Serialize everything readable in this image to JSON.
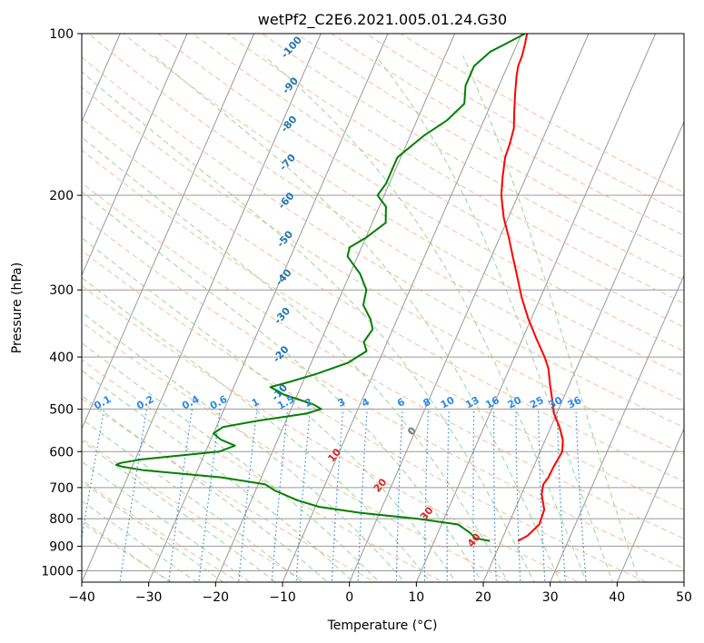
{
  "chart_data": {
    "type": "line",
    "subtype": "skew-t log-p diagram",
    "title": "wetPf2_C2E6.2021.005.01.24.G30",
    "xlabel": "Temperature (°C)",
    "ylabel": "Pressure (hPa)",
    "xlim": [
      -40,
      50
    ],
    "ylim": [
      1050,
      100
    ],
    "y_scale": "log",
    "grid": true,
    "x_ticks": [
      -40,
      -30,
      -20,
      -10,
      0,
      10,
      20,
      30,
      40,
      50
    ],
    "y_ticks": [
      100,
      200,
      300,
      400,
      500,
      600,
      700,
      800,
      900,
      1000
    ],
    "colors": {
      "temperature": "#ff0000",
      "dewpoint": "#008000",
      "isotherm": "#999999",
      "dry_adiabat": "#f4a582",
      "moist_adiabat": "#8fd18f",
      "mixing_ratio": "#2b8ae6",
      "dry_label": "#1f77b4",
      "moist_label": "#d62728",
      "zero_label": "#777777"
    },
    "series": [
      {
        "key": "temperature",
        "color": "#ff0000",
        "points": [
          [
            880,
            22.5
          ],
          [
            860,
            23.6
          ],
          [
            820,
            24.6
          ],
          [
            770,
            24.4
          ],
          [
            720,
            23.0
          ],
          [
            690,
            22.6
          ],
          [
            670,
            22.9
          ],
          [
            640,
            23.0
          ],
          [
            600,
            23.3
          ],
          [
            570,
            22.6
          ],
          [
            540,
            21.3
          ],
          [
            510,
            19.6
          ],
          [
            480,
            18.4
          ],
          [
            450,
            17.1
          ],
          [
            420,
            15.8
          ],
          [
            400,
            14.5
          ],
          [
            370,
            12.1
          ],
          [
            340,
            9.6
          ],
          [
            310,
            7.2
          ],
          [
            285,
            5.3
          ],
          [
            260,
            3.2
          ],
          [
            240,
            1.4
          ],
          [
            220,
            -0.7
          ],
          [
            200,
            -2.5
          ],
          [
            185,
            -3.5
          ],
          [
            170,
            -4.4
          ],
          [
            160,
            -4.6
          ],
          [
            150,
            -5.0
          ],
          [
            140,
            -6.0
          ],
          [
            130,
            -7.0
          ],
          [
            120,
            -8.0
          ],
          [
            115,
            -8.4
          ],
          [
            110,
            -8.5
          ],
          [
            105,
            -8.8
          ],
          [
            100,
            -9.2
          ]
        ]
      },
      {
        "key": "dewpoint",
        "color": "#008000",
        "points": [
          [
            880,
            18.3
          ],
          [
            870,
            16.0
          ],
          [
            850,
            14.8
          ],
          [
            820,
            12.5
          ],
          [
            800,
            6.0
          ],
          [
            780,
            -3.0
          ],
          [
            760,
            -9.5
          ],
          [
            740,
            -13.0
          ],
          [
            710,
            -17.0
          ],
          [
            690,
            -19.0
          ],
          [
            670,
            -26.0
          ],
          [
            650,
            -38.0
          ],
          [
            640,
            -41.5
          ],
          [
            635,
            -42.5
          ],
          [
            630,
            -42.0
          ],
          [
            620,
            -39.0
          ],
          [
            600,
            -28.0
          ],
          [
            585,
            -26.0
          ],
          [
            570,
            -28.5
          ],
          [
            555,
            -30.0
          ],
          [
            540,
            -29.0
          ],
          [
            525,
            -24.0
          ],
          [
            510,
            -17.5
          ],
          [
            500,
            -15.5
          ],
          [
            490,
            -17.0
          ],
          [
            470,
            -22.0
          ],
          [
            455,
            -24.5
          ],
          [
            445,
            -22.0
          ],
          [
            430,
            -18.5
          ],
          [
            410,
            -14.5
          ],
          [
            390,
            -12.5
          ],
          [
            375,
            -13.5
          ],
          [
            355,
            -13.0
          ],
          [
            340,
            -14.0
          ],
          [
            320,
            -16.0
          ],
          [
            300,
            -16.5
          ],
          [
            280,
            -18.5
          ],
          [
            260,
            -21.5
          ],
          [
            250,
            -21.8
          ],
          [
            240,
            -20.0
          ],
          [
            225,
            -18.0
          ],
          [
            210,
            -19.0
          ],
          [
            200,
            -21.0
          ],
          [
            190,
            -20.5
          ],
          [
            180,
            -20.5
          ],
          [
            170,
            -20.5
          ],
          [
            155,
            -18.0
          ],
          [
            145,
            -15.5
          ],
          [
            135,
            -14.0
          ],
          [
            125,
            -15.0
          ],
          [
            115,
            -15.0
          ],
          [
            108,
            -13.5
          ],
          [
            104,
            -11.5
          ],
          [
            100,
            -9.5
          ]
        ]
      }
    ],
    "dry_adiabat_labels": [
      "-100",
      "-90",
      "-80",
      "-70",
      "-60",
      "-50",
      "-40",
      "-30",
      "-20",
      "-10"
    ],
    "moist_adiabat_labels": [
      "10",
      "20",
      "30",
      "40"
    ],
    "zero_label": "0",
    "mixing_ratio_labels": [
      "0.1",
      "0.2",
      "0.4",
      "0.6",
      "1",
      "1.5",
      "2",
      "3",
      "4",
      "6",
      "8",
      "10",
      "13",
      "16",
      "20",
      "25",
      "30",
      "36"
    ]
  }
}
